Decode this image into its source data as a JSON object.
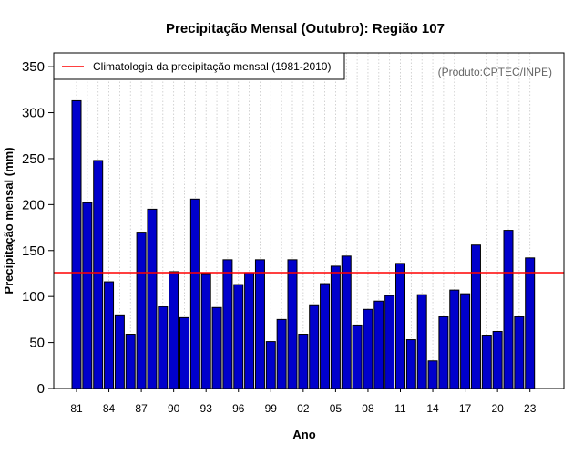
{
  "chart_data": {
    "type": "bar",
    "title": "Precipitação Mensal (Outubro): Região 107",
    "xlabel": "Ano",
    "ylabel": "Precipitação mensal (mm)",
    "ylim": [
      0,
      365
    ],
    "yticks": [
      0,
      50,
      100,
      150,
      200,
      250,
      300,
      350
    ],
    "categories": [
      "1981",
      "1982",
      "1983",
      "1984",
      "1985",
      "1986",
      "1987",
      "1988",
      "1989",
      "1990",
      "1991",
      "1992",
      "1993",
      "1994",
      "1995",
      "1996",
      "1997",
      "1998",
      "1999",
      "2000",
      "2001",
      "2002",
      "2003",
      "2004",
      "2005",
      "2006",
      "2007",
      "2008",
      "2009",
      "2010",
      "2011",
      "2012",
      "2013",
      "2014",
      "2015",
      "2016",
      "2017",
      "2018",
      "2019",
      "2020",
      "2021",
      "2022",
      "2023"
    ],
    "xtick_labels": [
      "81",
      "84",
      "87",
      "90",
      "93",
      "96",
      "99",
      "02",
      "05",
      "08",
      "11",
      "14",
      "17",
      "20",
      "23"
    ],
    "values": [
      313,
      202,
      248,
      116,
      80,
      59,
      170,
      195,
      89,
      127,
      77,
      206,
      125,
      88,
      140,
      113,
      126,
      140,
      51,
      75,
      140,
      59,
      91,
      114,
      133,
      144,
      69,
      86,
      95,
      101,
      136,
      53,
      102,
      30,
      78,
      107,
      103,
      156,
      58,
      62,
      172,
      78,
      142
    ],
    "bar_color": "#0000cc",
    "climatology": {
      "label": "Climatologia da precipitação mensal (1981-2010)",
      "value": 126,
      "color": "#ff0000"
    },
    "legend_position": "top-left",
    "grid": "vertical-dotted",
    "credit": "(Produto:CPTEC/INPE)"
  }
}
